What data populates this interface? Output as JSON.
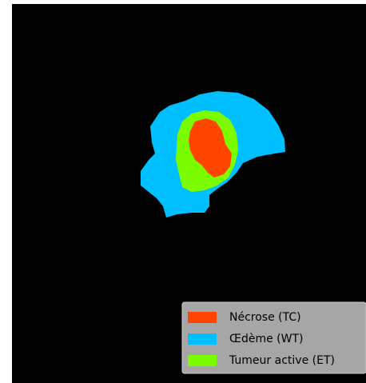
{
  "legend": [
    {
      "label": "Nécrose (TC)",
      "color": "#ff4500"
    },
    {
      "label": "Œdème (WT)",
      "color": "#00bfff"
    },
    {
      "label": "Tumeur active (ET)",
      "color": "#7cfc00"
    }
  ]
}
